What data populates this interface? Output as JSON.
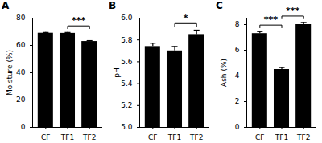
{
  "chart_data": [
    {
      "type": "bar",
      "title": "A",
      "categories": [
        "CF",
        "TF1",
        "TF2"
      ],
      "values": [
        69.0,
        68.9,
        62.9
      ],
      "errors": [
        0.5,
        0.6,
        0.6
      ],
      "color": "#000000",
      "ylabel": "Moisture (%)",
      "ylim": [
        0,
        80
      ],
      "yticks": [
        0,
        20,
        40,
        60,
        80
      ],
      "significance": [
        {
          "from": "TF1",
          "to": "TF2",
          "label": "***"
        }
      ]
    },
    {
      "type": "bar",
      "title": "B",
      "categories": [
        "CF",
        "TF1",
        "TF2"
      ],
      "values": [
        5.74,
        5.7,
        5.85
      ],
      "errors": [
        0.03,
        0.04,
        0.04
      ],
      "color": "#000000",
      "ylabel": "pH",
      "ylim": [
        5.0,
        6.0
      ],
      "yticks": [
        {
          "value": 5.0,
          "label": "5.0"
        },
        {
          "value": 5.2,
          "label": "5.2"
        },
        {
          "value": 5.4,
          "label": "5.4"
        },
        {
          "value": 5.6,
          "label": "5.6"
        },
        {
          "value": 5.8,
          "label": "5.8"
        },
        {
          "value": 6.0,
          "label": "6.0"
        }
      ],
      "significance": [
        {
          "from": "TF1",
          "to": "TF2",
          "label": "*"
        }
      ]
    },
    {
      "type": "bar",
      "title": "C",
      "categories": [
        "CF",
        "TF1",
        "TF2"
      ],
      "values": [
        7.3,
        4.5,
        8.0
      ],
      "errors": [
        0.15,
        0.15,
        0.15
      ],
      "color": "#000000",
      "ylabel": "Ash (%)",
      "ylim": [
        0,
        8.5
      ],
      "yticks": [
        0,
        2,
        4,
        6,
        8
      ],
      "significance": [
        {
          "from": "CF",
          "to": "TF1",
          "label": "***"
        },
        {
          "from": "TF1",
          "to": "TF2",
          "label": "***"
        }
      ]
    }
  ]
}
